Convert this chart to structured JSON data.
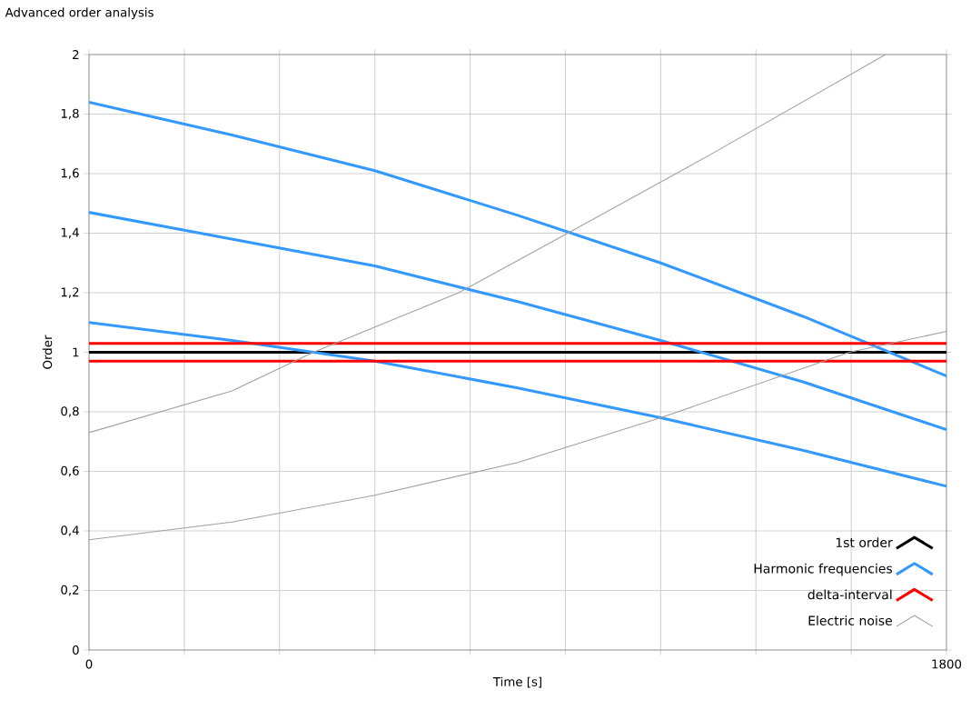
{
  "chart_data": {
    "type": "line",
    "title": "Advanced order analysis",
    "xlabel": "Time [s]",
    "ylabel": "Order",
    "xlim": [
      0,
      1800
    ],
    "ylim": [
      0,
      2
    ],
    "xticks": [
      0,
      {
        "value": 200,
        "label": null
      },
      {
        "value": 400,
        "label": null
      },
      {
        "value": 600,
        "label": null
      },
      {
        "value": 800,
        "label": null
      },
      {
        "value": 1000,
        "label": null
      },
      {
        "value": 1200,
        "label": null
      },
      {
        "value": 1400,
        "label": null
      },
      {
        "value": 1600,
        "label": null
      },
      1800
    ],
    "yticks": [
      0,
      {
        "value": 0.2,
        "label": "0,2"
      },
      {
        "value": 0.4,
        "label": "0,4"
      },
      {
        "value": 0.6,
        "label": "0,6"
      },
      {
        "value": 0.8,
        "label": "0,8"
      },
      1,
      {
        "value": 1.2,
        "label": "1,2"
      },
      {
        "value": 1.4,
        "label": "1,4"
      },
      {
        "value": 1.6,
        "label": "1,6"
      },
      {
        "value": 1.8,
        "label": "1,8"
      },
      2
    ],
    "grid": true,
    "legend": "bottom right",
    "line_style": "solid",
    "series": [
      {
        "name": "1st order",
        "color": "#000000",
        "x": [
          0,
          1800
        ],
        "values": [
          1,
          1
        ]
      },
      {
        "name": "Harmonic frequencies",
        "color": "#3399ff",
        "x": [
          0,
          300,
          600,
          900,
          1200,
          1500,
          1800
        ],
        "values": [
          1.84,
          1.73,
          1.61,
          1.46,
          1.3,
          1.12,
          0.92
        ]
      },
      {
        "color": "#3399ff",
        "x": [
          0,
          300,
          600,
          900,
          1200,
          1500,
          1800
        ],
        "values": [
          1.47,
          1.38,
          1.29,
          1.17,
          1.04,
          0.9,
          0.74
        ]
      },
      {
        "color": "#3399ff",
        "x": [
          0,
          300,
          600,
          900,
          1200,
          1500,
          1800
        ],
        "values": [
          1.1,
          1.04,
          0.97,
          0.88,
          0.78,
          0.67,
          0.55
        ]
      },
      {
        "name": "delta-interval",
        "color": "#ff0000",
        "x": [
          0,
          1800
        ],
        "values": [
          1.03,
          1.03
        ]
      },
      {
        "color": "#ff0000",
        "x": [
          0,
          1800
        ],
        "values": [
          0.97,
          0.97
        ]
      },
      {
        "name": "Electric noise",
        "color": "#a0a0a0",
        "x": [
          0,
          300,
          471,
          776,
          1005,
          1300,
          1672
        ],
        "values": [
          0.73,
          0.87,
          1.0,
          1.2,
          1.4,
          1.66,
          2.0
        ]
      },
      {
        "color": "#a0a0a0",
        "x": [
          0,
          300,
          600,
          900,
          1200,
          1596,
          1800
        ],
        "values": [
          0.37,
          0.43,
          0.52,
          0.63,
          0.78,
          1.0,
          1.07
        ]
      }
    ]
  }
}
